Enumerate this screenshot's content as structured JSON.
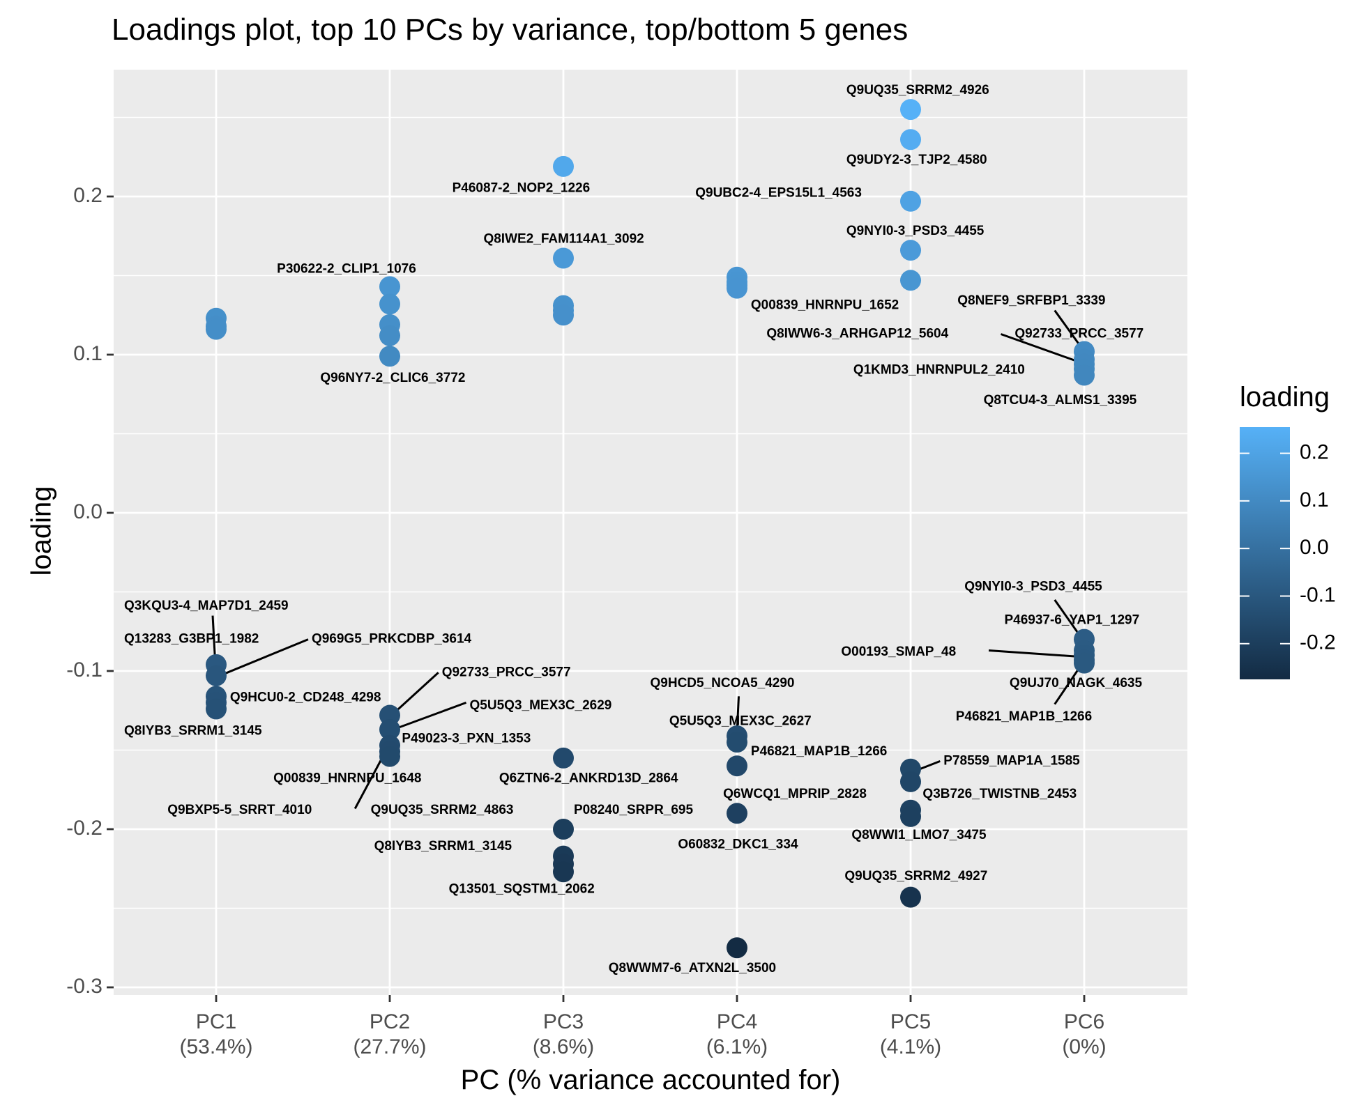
{
  "chart_data": {
    "type": "scatter",
    "title": "Loadings plot, top 10 PCs by variance, top/bottom 5 genes",
    "xlabel": "PC (% variance accounted for)",
    "ylabel": "loading",
    "categories": [
      "PC1",
      "PC2",
      "PC3",
      "PC4",
      "PC5",
      "PC6"
    ],
    "category_labels": [
      "PC1\n(53.4%)",
      "PC2\n(27.7%)",
      "PC3\n(8.6%)",
      "PC4\n(6.1%)",
      "PC5\n(4.1%)",
      "PC6\n(0%)"
    ],
    "ylim": [
      -0.3,
      0.265
    ],
    "yticks": [
      -0.3,
      -0.2,
      -0.1,
      0.0,
      0.1,
      0.2
    ],
    "ytick_labels": [
      "-0.3",
      "-0.2",
      "-0.1",
      "0.0",
      "0.1",
      "0.2"
    ],
    "grid": true,
    "legend": {
      "title": "loading",
      "position": "right",
      "type": "colorbar",
      "low_color": "#132B43",
      "high_color": "#56B1F7",
      "range": [
        -0.275,
        0.255
      ],
      "ticks": [
        0.2,
        0.1,
        0.0,
        -0.1,
        -0.2
      ],
      "tick_labels": [
        "0.2",
        "0.1",
        "0.0",
        "-0.1",
        "-0.2"
      ]
    },
    "colors": {
      "panel_background": "#EBEBEB",
      "grid": "#FFFFFF",
      "low": "#132B43",
      "high": "#56B1F7"
    },
    "points": [
      {
        "pc": "PC1",
        "y": 0.123
      },
      {
        "pc": "PC1",
        "y": 0.118
      },
      {
        "pc": "PC1",
        "y": 0.116
      },
      {
        "pc": "PC1",
        "y": -0.096
      },
      {
        "pc": "PC1",
        "y": -0.103
      },
      {
        "pc": "PC1",
        "y": -0.116
      },
      {
        "pc": "PC1",
        "y": -0.12
      },
      {
        "pc": "PC1",
        "y": -0.124
      },
      {
        "pc": "PC2",
        "y": 0.143
      },
      {
        "pc": "PC2",
        "y": 0.132
      },
      {
        "pc": "PC2",
        "y": 0.119
      },
      {
        "pc": "PC2",
        "y": 0.112
      },
      {
        "pc": "PC2",
        "y": 0.099
      },
      {
        "pc": "PC2",
        "y": -0.128
      },
      {
        "pc": "PC2",
        "y": -0.137
      },
      {
        "pc": "PC2",
        "y": -0.147
      },
      {
        "pc": "PC2",
        "y": -0.151
      },
      {
        "pc": "PC2",
        "y": -0.154
      },
      {
        "pc": "PC3",
        "y": 0.219
      },
      {
        "pc": "PC3",
        "y": 0.161
      },
      {
        "pc": "PC3",
        "y": 0.131
      },
      {
        "pc": "PC3",
        "y": 0.128
      },
      {
        "pc": "PC3",
        "y": 0.125
      },
      {
        "pc": "PC3",
        "y": -0.155
      },
      {
        "pc": "PC3",
        "y": -0.2
      },
      {
        "pc": "PC3",
        "y": -0.217
      },
      {
        "pc": "PC3",
        "y": -0.222
      },
      {
        "pc": "PC3",
        "y": -0.227
      },
      {
        "pc": "PC4",
        "y": 0.149
      },
      {
        "pc": "PC4",
        "y": 0.146
      },
      {
        "pc": "PC4",
        "y": 0.144
      },
      {
        "pc": "PC4",
        "y": 0.142
      },
      {
        "pc": "PC4",
        "y": -0.141
      },
      {
        "pc": "PC4",
        "y": -0.145
      },
      {
        "pc": "PC4",
        "y": -0.16
      },
      {
        "pc": "PC4",
        "y": -0.19
      },
      {
        "pc": "PC4",
        "y": -0.275
      },
      {
        "pc": "PC5",
        "y": 0.255
      },
      {
        "pc": "PC5",
        "y": 0.236
      },
      {
        "pc": "PC5",
        "y": 0.197
      },
      {
        "pc": "PC5",
        "y": 0.166
      },
      {
        "pc": "PC5",
        "y": 0.147
      },
      {
        "pc": "PC5",
        "y": -0.162
      },
      {
        "pc": "PC5",
        "y": -0.17
      },
      {
        "pc": "PC5",
        "y": -0.188
      },
      {
        "pc": "PC5",
        "y": -0.192
      },
      {
        "pc": "PC5",
        "y": -0.243
      },
      {
        "pc": "PC6",
        "y": 0.102
      },
      {
        "pc": "PC6",
        "y": 0.097
      },
      {
        "pc": "PC6",
        "y": 0.094
      },
      {
        "pc": "PC6",
        "y": 0.091
      },
      {
        "pc": "PC6",
        "y": 0.087
      },
      {
        "pc": "PC6",
        "y": -0.08
      },
      {
        "pc": "PC6",
        "y": -0.087
      },
      {
        "pc": "PC6",
        "y": -0.09
      },
      {
        "pc": "PC6",
        "y": -0.093
      },
      {
        "pc": "PC6",
        "y": -0.095
      }
    ],
    "annotations": [
      {
        "text": "Q3KQU3-4_MAP7D1_2459",
        "pc": "PC1",
        "tx": -0.53,
        "ty": -0.059,
        "anchor": "start",
        "line": [
          -0.005,
          -0.095,
          -0.02,
          -0.065
        ]
      },
      {
        "text": "Q13283_G3BP1_1982",
        "pc": "PC1",
        "tx": -0.53,
        "ty": -0.08,
        "anchor": "start"
      },
      {
        "text": "Q969G5_PRKCDBP_3614",
        "pc": "PC1",
        "tx": 0.55,
        "ty": -0.08,
        "anchor": "start",
        "line": [
          0.02,
          -0.103,
          0.53,
          -0.08
        ]
      },
      {
        "text": "Q9HCU0-2_CD248_4298",
        "pc": "PC1",
        "tx": 0.08,
        "ty": -0.117,
        "anchor": "start"
      },
      {
        "text": "Q8IYB3_SRRM1_3145",
        "pc": "PC1",
        "tx": -0.53,
        "ty": -0.138,
        "anchor": "start"
      },
      {
        "text": "P30622-2_CLIP1_1076",
        "pc": "PC2",
        "tx": -0.65,
        "ty": 0.154,
        "anchor": "start"
      },
      {
        "text": "Q96NY7-2_CLIC6_3772",
        "pc": "PC2",
        "tx": -0.4,
        "ty": 0.085,
        "anchor": "start"
      },
      {
        "text": "Q92733_PRCC_3577",
        "pc": "PC2",
        "tx": 0.3,
        "ty": -0.101,
        "anchor": "start",
        "line": [
          0.02,
          -0.127,
          0.28,
          -0.101
        ]
      },
      {
        "text": "Q5U5Q3_MEX3C_2629",
        "pc": "PC2",
        "tx": 0.46,
        "ty": -0.122,
        "anchor": "start",
        "line": [
          0.02,
          -0.137,
          0.44,
          -0.12
        ]
      },
      {
        "text": "P49023-3_PXN_1353",
        "pc": "PC2",
        "tx": 0.07,
        "ty": -0.143,
        "anchor": "start"
      },
      {
        "text": "Q00839_HNRNPU_1648",
        "pc": "PC2",
        "tx": -0.67,
        "ty": -0.168,
        "anchor": "start"
      },
      {
        "text": "Q9BXP5-5_SRRT_4010",
        "pc": "PC2",
        "tx": -1.28,
        "ty": -0.188,
        "anchor": "start",
        "line": [
          -0.02,
          -0.15,
          -0.2,
          -0.187
        ]
      },
      {
        "text": "P46087-2_NOP2_1226",
        "pc": "PC3",
        "tx": -0.64,
        "ty": 0.205,
        "anchor": "start"
      },
      {
        "text": "Q8IWE2_FAM114A1_3092",
        "pc": "PC3",
        "tx": -0.46,
        "ty": 0.173,
        "anchor": "start"
      },
      {
        "text": "Q6ZTN6-2_ANKRD13D_2864",
        "pc": "PC3",
        "tx": -0.37,
        "ty": -0.168,
        "anchor": "start"
      },
      {
        "text": "Q9UQ35_SRRM2_4863",
        "pc": "PC3",
        "tx": -1.11,
        "ty": -0.188,
        "anchor": "start"
      },
      {
        "text": "P08240_SRPR_695",
        "pc": "PC3",
        "tx": 0.06,
        "ty": -0.188,
        "anchor": "start"
      },
      {
        "text": "Q8IYB3_SRRM1_3145",
        "pc": "PC3",
        "tx": -1.09,
        "ty": -0.211,
        "anchor": "start"
      },
      {
        "text": "Q13501_SQSTM1_2062",
        "pc": "PC3",
        "tx": -0.66,
        "ty": -0.238,
        "anchor": "start"
      },
      {
        "text": "Q00839_HNRNPU_1652",
        "pc": "PC4",
        "tx": 0.08,
        "ty": 0.131,
        "anchor": "start"
      },
      {
        "text": "Q9HCD5_NCOA5_4290",
        "pc": "PC4",
        "tx": -0.5,
        "ty": -0.108,
        "anchor": "start",
        "line": [
          0.0,
          -0.139,
          0.01,
          -0.116
        ]
      },
      {
        "text": "Q5U5Q3_MEX3C_2627",
        "pc": "PC4",
        "tx": -0.39,
        "ty": -0.132,
        "anchor": "start"
      },
      {
        "text": "P46821_MAP1B_1266",
        "pc": "PC4",
        "tx": 0.08,
        "ty": -0.151,
        "anchor": "start"
      },
      {
        "text": "Q6WCQ1_MPRIP_2828",
        "pc": "PC4",
        "tx": -0.08,
        "ty": -0.178,
        "anchor": "start"
      },
      {
        "text": "O60832_DKC1_334",
        "pc": "PC4",
        "tx": -0.34,
        "ty": -0.21,
        "anchor": "start"
      },
      {
        "text": "Q8WWM7-6_ATXN2L_3500",
        "pc": "PC4",
        "tx": -0.74,
        "ty": -0.288,
        "anchor": "start"
      },
      {
        "text": "Q9UQ35_SRRM2_4926",
        "pc": "PC5",
        "tx": -0.37,
        "ty": 0.267,
        "anchor": "start"
      },
      {
        "text": "Q9UDY2-3_TJP2_4580",
        "pc": "PC5",
        "tx": -0.37,
        "ty": 0.223,
        "anchor": "start"
      },
      {
        "text": "Q9UBC2-4_EPS15L1_4563",
        "pc": "PC5",
        "tx": -1.24,
        "ty": 0.202,
        "anchor": "start"
      },
      {
        "text": "Q9NYI0-3_PSD3_4455",
        "pc": "PC5",
        "tx": -0.37,
        "ty": 0.178,
        "anchor": "start"
      },
      {
        "text": "Q8IWW6-3_ARHGAP12_5604",
        "pc": "PC5",
        "tx": -0.83,
        "ty": 0.113,
        "anchor": "start",
        "line": [
          0.52,
          0.113,
          0.98,
          0.095
        ]
      },
      {
        "text": "P78559_MAP1A_1585",
        "pc": "PC5",
        "tx": 0.19,
        "ty": -0.157,
        "anchor": "start",
        "line": [
          0.03,
          -0.163,
          0.17,
          -0.157
        ]
      },
      {
        "text": "Q3B726_TWISTNB_2453",
        "pc": "PC5",
        "tx": 0.07,
        "ty": -0.178,
        "anchor": "start"
      },
      {
        "text": "Q8WWI1_LMO7_3475",
        "pc": "PC5",
        "tx": -0.34,
        "ty": -0.204,
        "anchor": "start"
      },
      {
        "text": "Q9UQ35_SRRM2_4927",
        "pc": "PC5",
        "tx": -0.38,
        "ty": -0.23,
        "anchor": "start"
      },
      {
        "text": "Q8NEF9_SRFBP1_3339",
        "pc": "PC6",
        "tx": -0.73,
        "ty": 0.134,
        "anchor": "start",
        "line": [
          0.0,
          0.102,
          -0.17,
          0.128
        ]
      },
      {
        "text": "Q92733_PRCC_3577",
        "pc": "PC6",
        "tx": -0.4,
        "ty": 0.113,
        "anchor": "start"
      },
      {
        "text": "Q1KMD3_HNRNPUL2_2410",
        "pc": "PC6",
        "tx": -1.33,
        "ty": 0.09,
        "anchor": "start"
      },
      {
        "text": "Q8TCU4-3_ALMS1_3395",
        "pc": "PC6",
        "tx": -0.58,
        "ty": 0.071,
        "anchor": "start"
      },
      {
        "text": "Q9NYI0-3_PSD3_4455",
        "pc": "PC6",
        "tx": -0.69,
        "ty": -0.047,
        "anchor": "start",
        "line": [
          -0.01,
          -0.08,
          -0.17,
          -0.055
        ]
      },
      {
        "text": "P46937-6_YAP1_1297",
        "pc": "PC6",
        "tx": -0.46,
        "ty": -0.068,
        "anchor": "start"
      },
      {
        "text": "O00193_SMAP_48",
        "pc": "PC6",
        "tx": -1.4,
        "ty": -0.088,
        "anchor": "start",
        "line": [
          -0.02,
          -0.091,
          -0.55,
          -0.087
        ]
      },
      {
        "text": "Q9UJ70_NAGK_4635",
        "pc": "PC6",
        "tx": -0.43,
        "ty": -0.108,
        "anchor": "start"
      },
      {
        "text": "P46821_MAP1B_1266",
        "pc": "PC6",
        "tx": -0.74,
        "ty": -0.129,
        "anchor": "start",
        "line": [
          -0.01,
          -0.095,
          -0.17,
          -0.121
        ]
      }
    ]
  }
}
